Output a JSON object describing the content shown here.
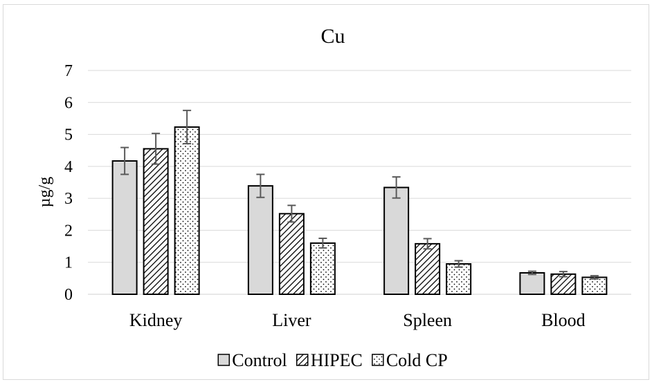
{
  "chart_data": {
    "type": "bar",
    "title": "Cu",
    "ylabel": "µg/g",
    "xlabel": "",
    "ylim": [
      0,
      7
    ],
    "yticks": [
      0,
      1,
      2,
      3,
      4,
      5,
      6,
      7
    ],
    "grid": true,
    "legend_position": "bottom",
    "categories": [
      "Kidney",
      "Liver",
      "Spleen",
      "Blood"
    ],
    "series": [
      {
        "name": "Control",
        "pattern": "solid",
        "color": "#d9d9d9",
        "values": [
          4.17,
          3.39,
          3.34,
          0.67
        ],
        "errors": [
          0.42,
          0.36,
          0.33,
          0.05
        ]
      },
      {
        "name": "HIPEC",
        "pattern": "diagonal-hatch",
        "color": "#ffffff",
        "values": [
          4.55,
          2.52,
          1.58,
          0.63
        ],
        "errors": [
          0.48,
          0.26,
          0.16,
          0.08
        ]
      },
      {
        "name": "Cold CP",
        "pattern": "dots",
        "color": "#ffffff",
        "values": [
          5.23,
          1.6,
          0.95,
          0.53
        ],
        "errors": [
          0.52,
          0.15,
          0.1,
          0.05
        ]
      }
    ],
    "colors": {
      "axis": "#000000",
      "grid": "#d9d9d9",
      "error_bar": "#595959"
    }
  }
}
